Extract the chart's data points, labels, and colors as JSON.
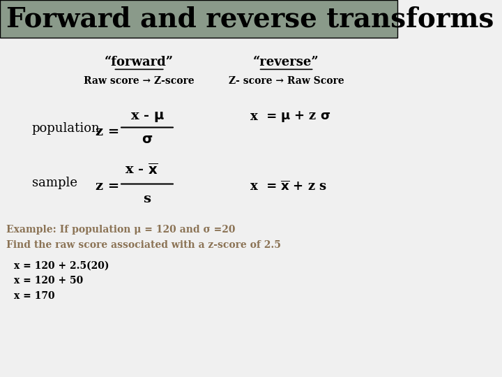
{
  "title": "Forward and reverse transforms",
  "title_bg_color": "#8a9a8a",
  "bg_color": "#f0f0f0",
  "forward_label": "“forward”",
  "reverse_label": "“reverse”",
  "forward_sub": "Raw score → Z-score",
  "reverse_sub": "Z- score → Raw Score",
  "pop_label": "population",
  "sample_label": "sample",
  "example_color": "#8B7355",
  "example_text1": "Example: If population μ = 120 and σ =20",
  "example_text2": "Find the raw score associated with a z-score of 2.5",
  "calc1": "x = 120 + 2.5(20)",
  "calc2": "x = 120 + 50",
  "calc3": "x = 170"
}
